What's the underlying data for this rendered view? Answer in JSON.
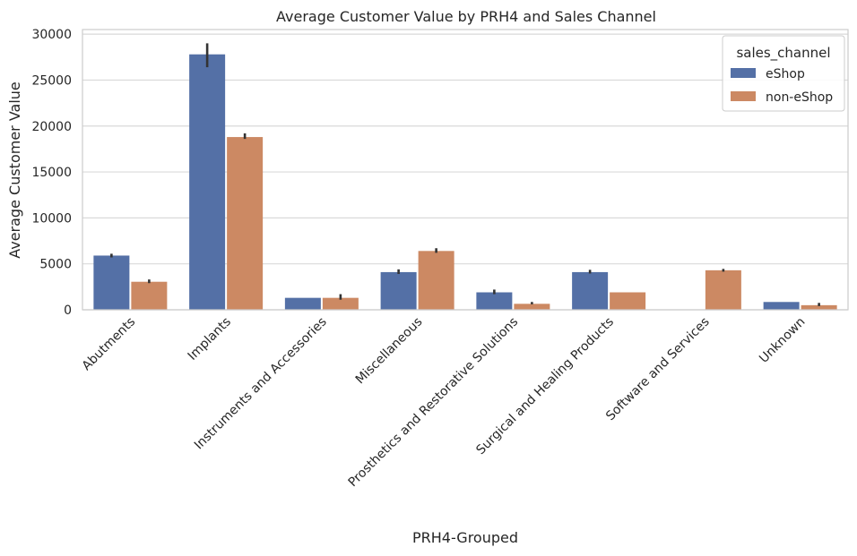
{
  "chart_data": {
    "type": "bar",
    "title": "Average Customer Value by PRH4 and Sales Channel",
    "xlabel": "PRH4-Grouped",
    "ylabel": "Average Customer Value",
    "ylim": [
      0,
      30500
    ],
    "yticks": [
      0,
      5000,
      10000,
      15000,
      20000,
      25000,
      30000
    ],
    "grid": true,
    "legend": {
      "title": "sales_channel",
      "placement": "top-right"
    },
    "categories": [
      "Abutments",
      "Implants",
      "Instruments and Accessories",
      "Miscellaneous",
      "Prosthetics and Restorative Solutions",
      "Surgical and Healing Products",
      "Software and Services",
      "Unknown"
    ],
    "series": [
      {
        "name": "eShop",
        "color": "#5470a6",
        "values": [
          5900,
          27800,
          1300,
          4100,
          1900,
          4100,
          null,
          850
        ],
        "ci_low": [
          5700,
          26400,
          1300,
          3900,
          1700,
          3950,
          null,
          850
        ],
        "ci_high": [
          6100,
          29000,
          1300,
          4400,
          2200,
          4350,
          null,
          850
        ]
      },
      {
        "name": "non-eShop",
        "color": "#cc8963",
        "values": [
          3050,
          18800,
          1300,
          6400,
          650,
          1900,
          4300,
          500
        ],
        "ci_low": [
          2900,
          18600,
          1100,
          6200,
          600,
          1900,
          4150,
          400
        ],
        "ci_high": [
          3300,
          19200,
          1700,
          6700,
          850,
          1900,
          4450,
          750
        ]
      }
    ]
  }
}
